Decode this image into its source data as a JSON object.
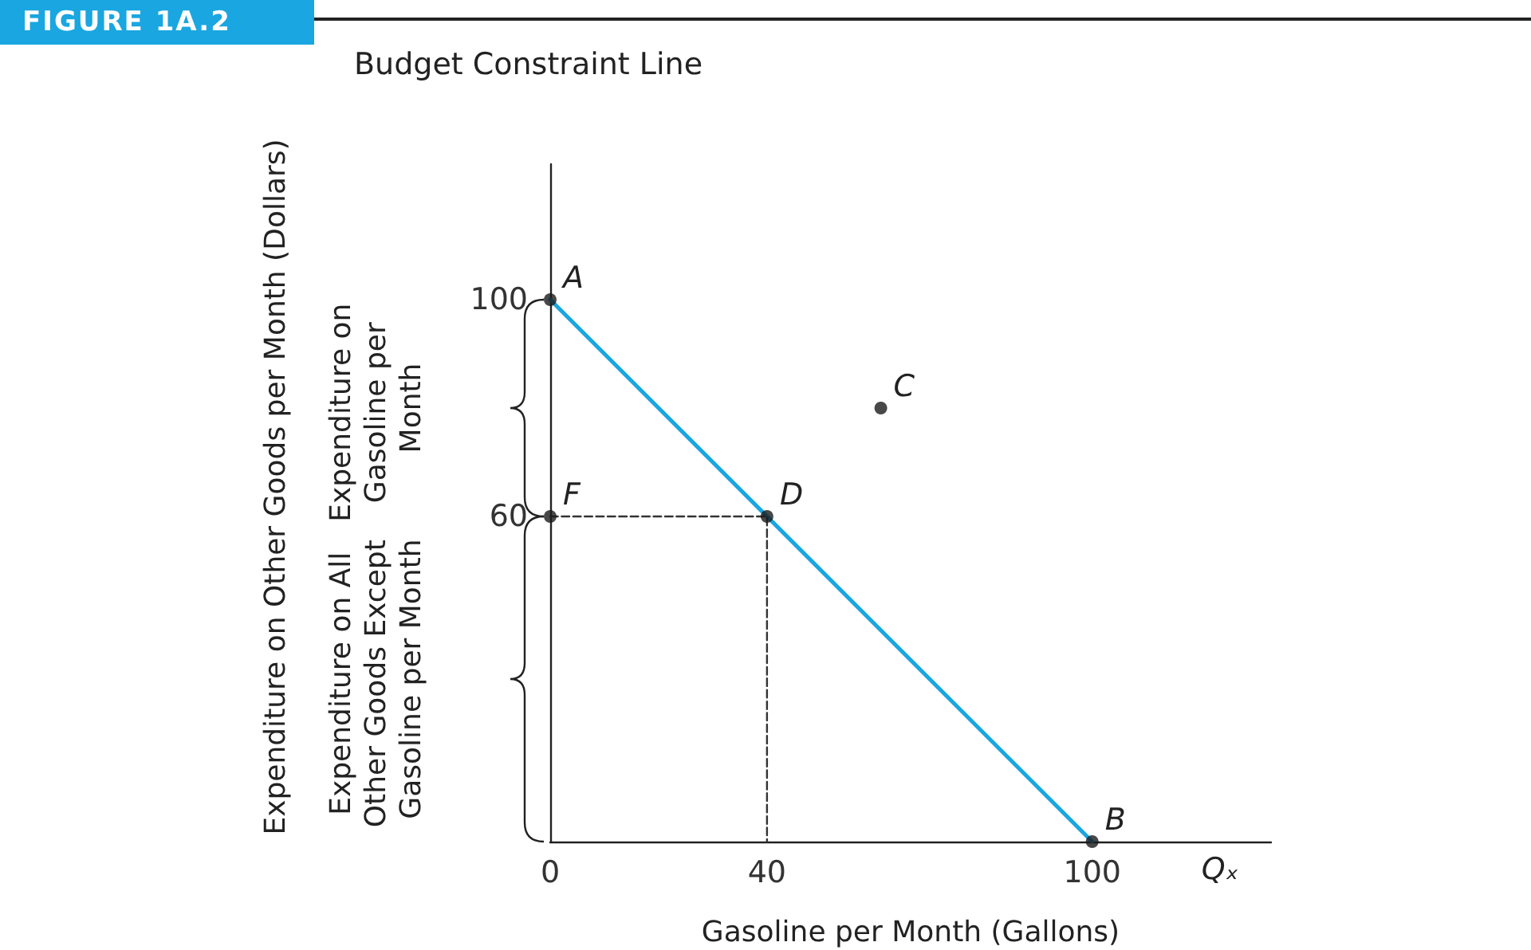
{
  "chart_data": {
    "type": "line",
    "title": "Budget Constraint Line",
    "xlabel": "Gasoline per Month (Gallons)",
    "xlim": [
      0,
      133
    ],
    "ylim": [
      0,
      125
    ],
    "xticks": [
      0,
      40,
      100
    ],
    "yticks": [
      60,
      100
    ],
    "grid": false,
    "series": [
      {
        "color": "#1aa6e0",
        "marker": "none",
        "line_style": "solid",
        "x": [
          0,
          100
        ],
        "values": [
          100,
          0
        ]
      },
      {
        "type": "line",
        "color": "#333333",
        "marker": "none",
        "line_style": "dashed",
        "x": [
          0,
          40,
          40
        ],
        "values": [
          60,
          60,
          0
        ]
      },
      {
        "type": "scatter",
        "color": "#1a1a1a",
        "marker": "circle",
        "x": [
          0,
          40,
          100,
          0,
          61
        ],
        "values": [
          100,
          60,
          0,
          60,
          80
        ]
      }
    ],
    "annotations": [
      "FIGURE 1A.2",
      "Expenditure on Gasoline per Month",
      "Expenditure on All Other Goods Except Gasoline per Month",
      "Qₓ",
      "Expenditure on Other Goods per Month (Dollars)",
      {
        "text": "A",
        "x": 0,
        "y": 100
      },
      {
        "text": "D",
        "x": 40,
        "y": 60
      },
      {
        "text": "B",
        "x": 100,
        "y": 0
      },
      {
        "text": "F",
        "x": 0,
        "y": 60
      },
      {
        "text": "C",
        "x": 61,
        "y": 80
      }
    ]
  }
}
